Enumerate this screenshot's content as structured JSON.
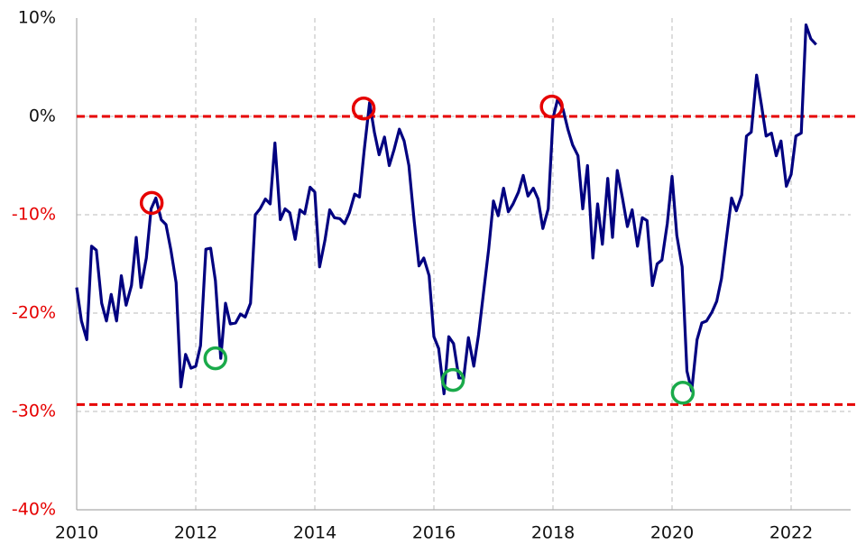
{
  "chart_data": {
    "type": "line",
    "x": [
      2010,
      2010.08,
      2010.17,
      2010.25,
      2010.33,
      2010.42,
      2010.5,
      2010.58,
      2010.67,
      2010.75,
      2010.83,
      2010.92,
      2011,
      2011.08,
      2011.17,
      2011.25,
      2011.33,
      2011.42,
      2011.5,
      2011.58,
      2011.67,
      2011.75,
      2011.83,
      2011.92,
      2012,
      2012.08,
      2012.17,
      2012.25,
      2012.33,
      2012.42,
      2012.5,
      2012.58,
      2012.67,
      2012.75,
      2012.83,
      2012.92,
      2013,
      2013.08,
      2013.17,
      2013.25,
      2013.33,
      2013.42,
      2013.5,
      2013.58,
      2013.67,
      2013.75,
      2013.83,
      2013.92,
      2014,
      2014.08,
      2014.17,
      2014.25,
      2014.33,
      2014.42,
      2014.5,
      2014.58,
      2014.67,
      2014.75,
      2014.83,
      2014.92,
      2015,
      2015.08,
      2015.17,
      2015.25,
      2015.33,
      2015.42,
      2015.5,
      2015.58,
      2015.67,
      2015.75,
      2015.83,
      2015.92,
      2016,
      2016.08,
      2016.17,
      2016.25,
      2016.33,
      2016.42,
      2016.5,
      2016.58,
      2016.67,
      2016.75,
      2016.83,
      2016.92,
      2017,
      2017.08,
      2017.17,
      2017.25,
      2017.33,
      2017.42,
      2017.5,
      2017.58,
      2017.67,
      2017.75,
      2017.83,
      2017.92,
      2018,
      2018.08,
      2018.17,
      2018.25,
      2018.33,
      2018.42,
      2018.5,
      2018.58,
      2018.67,
      2018.75,
      2018.83,
      2018.92,
      2019,
      2019.08,
      2019.17,
      2019.25,
      2019.33,
      2019.42,
      2019.5,
      2019.58,
      2019.67,
      2019.75,
      2019.83,
      2019.92,
      2020,
      2020.08,
      2020.17,
      2020.25,
      2020.33,
      2020.42,
      2020.5,
      2020.58,
      2020.67,
      2020.75,
      2020.83,
      2020.92,
      2021,
      2021.08,
      2021.17,
      2021.25,
      2021.33,
      2021.42,
      2021.5,
      2021.58,
      2021.67,
      2021.75,
      2021.83,
      2021.92,
      2022,
      2022.08,
      2022.17,
      2022.25,
      2022.33,
      2022.42
    ],
    "series": [
      {
        "color": "#000080",
        "values": [
          -17.4,
          -20.8,
          -22.7,
          -13.2,
          -13.6,
          -19.0,
          -20.8,
          -18.1,
          -20.8,
          -16.2,
          -19.2,
          -17.2,
          -12.3,
          -17.4,
          -14.4,
          -9.4,
          -8.3,
          -10.5,
          -11.0,
          -13.5,
          -16.9,
          -27.5,
          -24.2,
          -25.6,
          -25.4,
          -23.3,
          -13.5,
          -13.4,
          -16.7,
          -24.6,
          -19.0,
          -21.1,
          -21.0,
          -20.1,
          -20.4,
          -19.0,
          -10.0,
          -9.4,
          -8.4,
          -8.9,
          -2.7,
          -10.5,
          -9.4,
          -9.8,
          -12.5,
          -9.5,
          -9.9,
          -7.2,
          -7.7,
          -15.3,
          -12.6,
          -9.5,
          -10.3,
          -10.4,
          -10.9,
          -9.8,
          -7.9,
          -8.2,
          -3.4,
          1.4,
          -1.6,
          -3.9,
          -2.1,
          -5.0,
          -3.4,
          -1.3,
          -2.5,
          -5.0,
          -10.7,
          -15.2,
          -14.4,
          -16.2,
          -22.4,
          -23.6,
          -28.2,
          -22.4,
          -23.1,
          -26.6,
          -26.6,
          -22.5,
          -25.4,
          -22.2,
          -18.1,
          -13.5,
          -8.6,
          -10.1,
          -7.3,
          -9.7,
          -8.9,
          -7.7,
          -6.0,
          -8.1,
          -7.3,
          -8.4,
          -11.4,
          -9.4,
          -0.2,
          1.8,
          0.7,
          -1.3,
          -2.9,
          -4.0,
          -9.4,
          -5.0,
          -14.4,
          -8.9,
          -13.0,
          -6.3,
          -12.3,
          -5.5,
          -8.4,
          -11.2,
          -9.5,
          -13.2,
          -10.3,
          -10.6,
          -17.2,
          -15.0,
          -14.6,
          -10.9,
          -6.1,
          -12.1,
          -15.3,
          -25.9,
          -27.9,
          -22.7,
          -21.0,
          -20.8,
          -19.9,
          -18.8,
          -16.5,
          -12.1,
          -8.3,
          -9.6,
          -8.0,
          -2.0,
          -1.6,
          4.2,
          1.2,
          -2.0,
          -1.7,
          -4.0,
          -2.5,
          -7.1,
          -5.9,
          -2.0,
          -1.7,
          9.3,
          7.9,
          7.3
        ]
      }
    ],
    "xlim": [
      2010,
      2023
    ],
    "xticks": [
      2010,
      2012,
      2014,
      2016,
      2018,
      2020,
      2022
    ],
    "ylim": [
      -40,
      10
    ],
    "yticks": [
      {
        "value": -40,
        "label": "-40%"
      },
      {
        "value": -30,
        "label": "-30%"
      },
      {
        "value": -20,
        "label": "-20%"
      },
      {
        "value": -10,
        "label": "-10%"
      },
      {
        "value": 0,
        "label": "0%"
      },
      {
        "value": 10,
        "label": "10%"
      }
    ],
    "negative_tick_color": "#e60000",
    "grid": true,
    "reference_lines": [
      {
        "value": 0,
        "color": "#e60000"
      },
      {
        "value": -29.3,
        "color": "#e60000"
      }
    ],
    "highlights": [
      {
        "x": 2011.26,
        "y": -8.8,
        "color": "#e60000"
      },
      {
        "x": 2014.82,
        "y": 0.8,
        "color": "#e60000"
      },
      {
        "x": 2017.98,
        "y": 1.0,
        "color": "#e60000"
      },
      {
        "x": 2012.33,
        "y": -24.6,
        "color": "#1aaa4a"
      },
      {
        "x": 2016.32,
        "y": -26.8,
        "color": "#1aaa4a"
      },
      {
        "x": 2020.18,
        "y": -28.1,
        "color": "#1aaa4a"
      }
    ]
  }
}
